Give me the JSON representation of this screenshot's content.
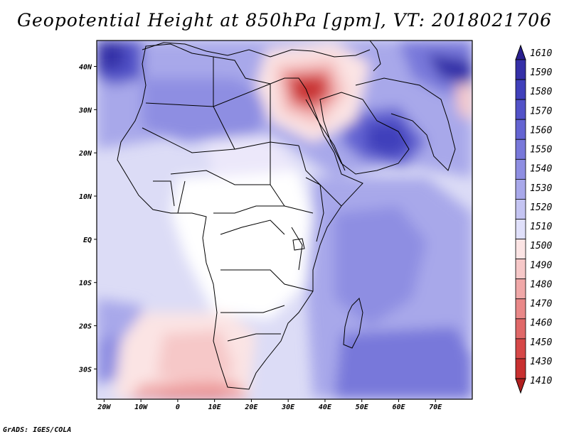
{
  "title": "Geopotential Height at 850hPa [gpm], VT: 2018021706",
  "credit": "GrADS: IGES/COLA",
  "map": {
    "lon_range": [
      -22,
      80
    ],
    "lat_range": [
      -37,
      46
    ],
    "x_ticks": [
      "20W",
      "10W",
      "0",
      "10E",
      "20E",
      "30E",
      "40E",
      "50E",
      "60E",
      "70E"
    ],
    "y_ticks": [
      "40N",
      "30N",
      "20N",
      "10N",
      "EQ",
      "10S",
      "20S",
      "30S"
    ],
    "features": {
      "low_center": "Eastern Mediterranean / Levant",
      "high_center": "Arabian Peninsula / Persian Gulf"
    }
  },
  "colorbar": {
    "labels": [
      "1610",
      "1590",
      "1580",
      "1570",
      "1560",
      "1550",
      "1540",
      "1530",
      "1520",
      "1510",
      "1500",
      "1490",
      "1480",
      "1470",
      "1460",
      "1450",
      "1430",
      "1410"
    ],
    "colors": [
      "#2a1f8f",
      "#3530a8",
      "#4040bb",
      "#5252c8",
      "#6464d2",
      "#7878da",
      "#8e8ee2",
      "#a8a8ea",
      "#c4c4f2",
      "#e0e0fa",
      "#fbe4e4",
      "#f6c8c8",
      "#f0a8a8",
      "#e98888",
      "#e06868",
      "#d64848",
      "#c83030",
      "#b01f1f"
    ]
  }
}
